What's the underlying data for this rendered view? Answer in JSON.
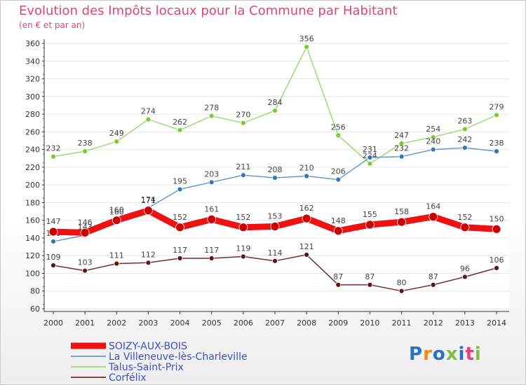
{
  "title": "Evolution des Impôts locaux pour la Commune par Habitant",
  "subtitle": "(en € et par an)",
  "logo_text": "Proxiti",
  "colors": {
    "title": "#e0447c",
    "axis": "#333333",
    "grid": "#e6e6e6",
    "label": "#444444",
    "logo_letters": [
      "#2b6fc9",
      "#ff8a00",
      "#2b6fc9",
      "#7ac143",
      "#2b6fc9",
      "#e0447c",
      "#7ac143"
    ]
  },
  "chart_data": {
    "type": "line",
    "x": [
      2000,
      2001,
      2002,
      2003,
      2004,
      2005,
      2006,
      2007,
      2008,
      2009,
      2010,
      2011,
      2012,
      2013,
      2014
    ],
    "ylim": [
      60,
      360
    ],
    "yticks": [
      60,
      80,
      100,
      120,
      140,
      160,
      180,
      200,
      220,
      240,
      260,
      280,
      300,
      320,
      340,
      360
    ],
    "grid": "horizontal",
    "legend_position": "bottom-left",
    "series": [
      {
        "name": "Talus-Saint-Prix",
        "color": "#99dd77",
        "marker": "#77cc33",
        "width": 1.5,
        "values": [
          232,
          238,
          249,
          274,
          262,
          278,
          270,
          284,
          356,
          256,
          224,
          247,
          254,
          263,
          279
        ]
      },
      {
        "name": "La Villeneuve-lès-Charleville",
        "color": "#6699cc",
        "marker": "#3377bb",
        "width": 1.5,
        "values": [
          136,
          143,
          160,
          174,
          195,
          203,
          211,
          208,
          210,
          206,
          231,
          232,
          240,
          242,
          238
        ]
      },
      {
        "name": "Corfélix",
        "color": "#7a2a2a",
        "marker": "#5a1515",
        "width": 1.5,
        "values": [
          109,
          103,
          111,
          112,
          117,
          117,
          119,
          114,
          121,
          87,
          87,
          80,
          87,
          96,
          106
        ]
      },
      {
        "name": "SOIZY-AUX-BOIS",
        "color": "#ee1111",
        "marker": "#cc0000",
        "width": 9,
        "values": [
          147,
          146,
          160,
          171,
          152,
          161,
          152,
          153,
          162,
          148,
          155,
          158,
          164,
          152,
          150
        ]
      }
    ],
    "data_labels": {
      "Talus-Saint-Prix": [
        "232",
        "238",
        "249",
        "274",
        "262",
        "278",
        "270",
        "284",
        "356",
        "256",
        "224",
        "247",
        "254",
        "263",
        "279"
      ],
      "La Villeneuve-lès-Charleville": [
        "136",
        "143",
        "160",
        "174",
        "195",
        "203",
        "211",
        "208",
        "210",
        "206",
        "231",
        "232",
        "240",
        "242",
        "238"
      ],
      "Corfélix": [
        "109",
        "103",
        "111",
        "112",
        "117",
        "117",
        "119",
        "114",
        "121",
        "87",
        "87",
        "80",
        "87",
        "96",
        "106"
      ],
      "SOIZY-AUX-BOIS": [
        "147",
        "146",
        "160",
        "171",
        "152",
        "161",
        "152",
        "153",
        "162",
        "148",
        "155",
        "158",
        "164",
        "152",
        "150"
      ]
    },
    "legend": [
      {
        "label": "SOIZY-AUX-BOIS",
        "color": "#ee1111",
        "thick": true
      },
      {
        "label": "La Villeneuve-lès-Charleville",
        "color": "#6699cc",
        "thick": false
      },
      {
        "label": "Talus-Saint-Prix",
        "color": "#99dd77",
        "thick": false
      },
      {
        "label": "Corfélix",
        "color": "#7a2a2a",
        "thick": false
      }
    ]
  }
}
